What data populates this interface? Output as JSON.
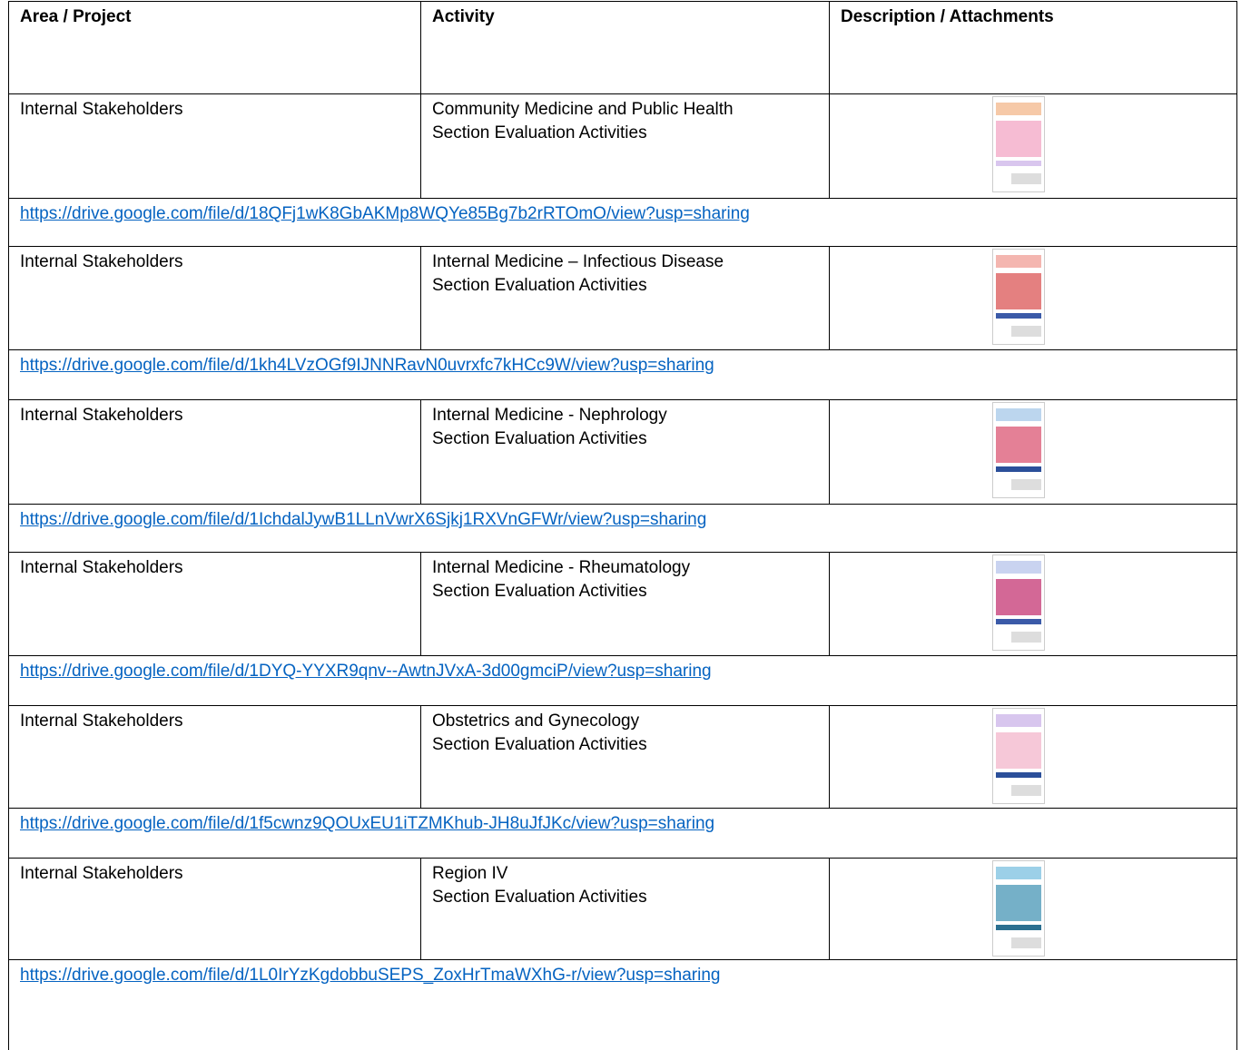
{
  "table": {
    "header": [
      "Area / Project",
      "Activity",
      "Description / Attachments"
    ],
    "rows": [
      {
        "area": "Internal Stakeholders",
        "activity": [
          "Community Medicine and Public Health",
          "Section Evaluation Activities"
        ],
        "link": "https://drive.google.com/file/d/18QFj1wK8GbAKMp8WQYe85Bg7b2rRTOmO/view?usp=sharing"
      },
      {
        "area": "Internal Stakeholders",
        "activity": [
          "Internal Medicine – Infectious Disease",
          "Section Evaluation Activities"
        ],
        "link": "https://drive.google.com/file/d/1kh4LVzOGf9IJNNRavN0uvrxfc7kHCc9W/view?usp=sharing"
      },
      {
        "area": "Internal Stakeholders",
        "activity": [
          "Internal Medicine - Nephrology",
          "Section Evaluation Activities"
        ],
        "link": "https://drive.google.com/file/d/1IchdalJywB1LLnVwrX6Sjkj1RXVnGFWr/view?usp=sharing"
      },
      {
        "area": "Internal Stakeholders",
        "activity": [
          "Internal Medicine - Rheumatology",
          "Section Evaluation Activities"
        ],
        "link": "https://drive.google.com/file/d/1DYQ-YYXR9qnv--AwtnJVxA-3d00gmciP/view?usp=sharing"
      },
      {
        "area": "Internal Stakeholders",
        "activity": [
          "Obstetrics and Gynecology",
          "Section Evaluation Activities"
        ],
        "link": "https://drive.google.com/file/d/1f5cwnz9QOUxEU1iTZMKhub-JH8uJfJKc/view?usp=sharing"
      },
      {
        "area": "Internal Stakeholders",
        "activity": [
          "Region IV",
          "Section Evaluation Activities"
        ],
        "link": "https://drive.google.com/file/d/1L0IrYzKgdobbuSEPS_ZoxHrTmaWXhG-r/view?usp=sharing"
      }
    ]
  }
}
